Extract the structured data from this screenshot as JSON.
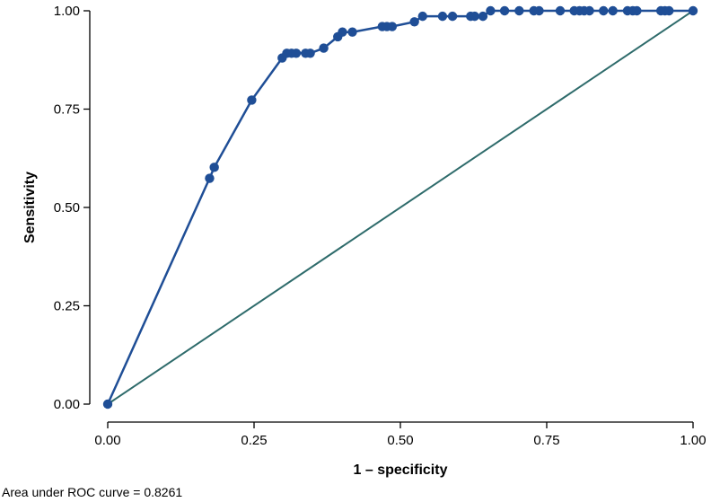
{
  "chart_data": {
    "type": "line",
    "title": "",
    "xlabel": "1 – specificity",
    "ylabel": "Sensitivity",
    "xlim": [
      0,
      1
    ],
    "ylim": [
      0,
      1
    ],
    "x_ticks": [
      "0.00",
      "0.25",
      "0.50",
      "0.75",
      "1.00"
    ],
    "y_ticks": [
      "0.00",
      "0.25",
      "0.50",
      "0.75",
      "1.00"
    ],
    "grid": false,
    "note": "Area under ROC curve = 0.8261",
    "colors": {
      "roc": "#1f4e96",
      "reference": "#2e6b6b"
    },
    "series": [
      {
        "x": [
          0.0,
          0.174,
          0.182,
          0.246,
          0.298,
          0.306,
          0.314,
          0.322,
          0.338,
          0.346,
          0.369,
          0.393,
          0.401,
          0.418,
          0.469,
          0.477,
          0.486,
          0.524,
          0.538,
          0.572,
          0.589,
          0.62,
          0.627,
          0.641,
          0.654,
          0.678,
          0.703,
          0.728,
          0.737,
          0.773,
          0.797,
          0.806,
          0.814,
          0.823,
          0.847,
          0.863,
          0.888,
          0.897,
          0.904,
          0.945,
          0.952,
          0.959,
          1.0
        ],
        "y": [
          0.0,
          0.574,
          0.602,
          0.773,
          0.88,
          0.892,
          0.892,
          0.892,
          0.892,
          0.892,
          0.905,
          0.934,
          0.946,
          0.946,
          0.96,
          0.96,
          0.96,
          0.972,
          0.986,
          0.986,
          0.986,
          0.986,
          0.986,
          0.986,
          1.0,
          1.0,
          1.0,
          1.0,
          1.0,
          1.0,
          1.0,
          1.0,
          1.0,
          1.0,
          1.0,
          1.0,
          1.0,
          1.0,
          1.0,
          1.0,
          1.0,
          1.0,
          1.0
        ]
      },
      {
        "x": [
          0,
          1
        ],
        "y": [
          0,
          1
        ]
      }
    ]
  }
}
